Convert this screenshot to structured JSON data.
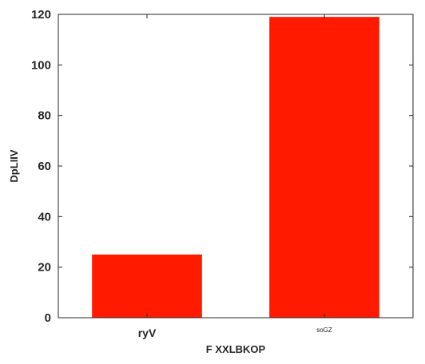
{
  "chart_data": {
    "type": "bar",
    "categories": [
      "ryV",
      "soGZ"
    ],
    "values": [
      25,
      119
    ],
    "xlabel": "F XXLBKOP",
    "ylabel": "DpLIIV",
    "ylim": [
      0,
      120
    ],
    "yticks": [
      0,
      20,
      40,
      60,
      80,
      100,
      120
    ],
    "bar_color": "#ff1a00",
    "grid": false
  }
}
